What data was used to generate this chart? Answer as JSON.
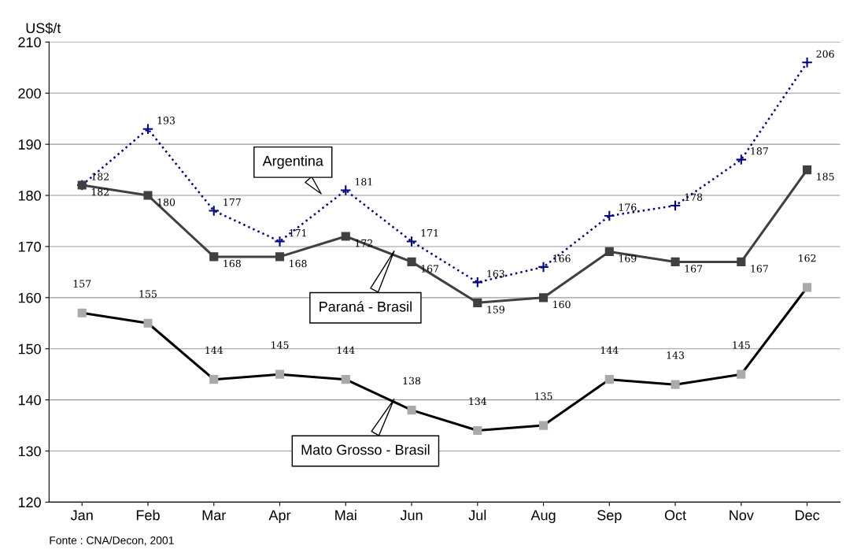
{
  "chart_data": {
    "type": "line",
    "ylabel": "US$/t",
    "categories": [
      "Jan",
      "Feb",
      "Mar",
      "Apr",
      "Mai",
      "Jun",
      "Jul",
      "Aug",
      "Sep",
      "Oct",
      "Nov",
      "Dec"
    ],
    "series": [
      {
        "name": "Argentina",
        "color": "#000080",
        "line_style": "dotted",
        "marker": "cross",
        "values": [
          182,
          193,
          177,
          171,
          181,
          171,
          163,
          166,
          176,
          178,
          187,
          206
        ]
      },
      {
        "name": "Paraná - Brasil",
        "color": "#404040",
        "line_style": "solid",
        "marker": "square",
        "values": [
          182,
          180,
          168,
          168,
          172,
          167,
          159,
          160,
          169,
          167,
          167,
          185
        ]
      },
      {
        "name": "Mato Grosso - Brasil",
        "color": "#000000",
        "line_style": "solid",
        "marker": "square",
        "values": [
          157,
          155,
          144,
          145,
          144,
          138,
          134,
          135,
          144,
          143,
          145,
          162
        ]
      }
    ],
    "ylim": [
      120,
      210
    ],
    "yticks": [
      120,
      130,
      140,
      150,
      160,
      170,
      180,
      190,
      200,
      210
    ],
    "grid": "y",
    "legend": false,
    "data_labels": true,
    "annotations": [
      "Fonte : CNA/Decon, 2001"
    ]
  }
}
